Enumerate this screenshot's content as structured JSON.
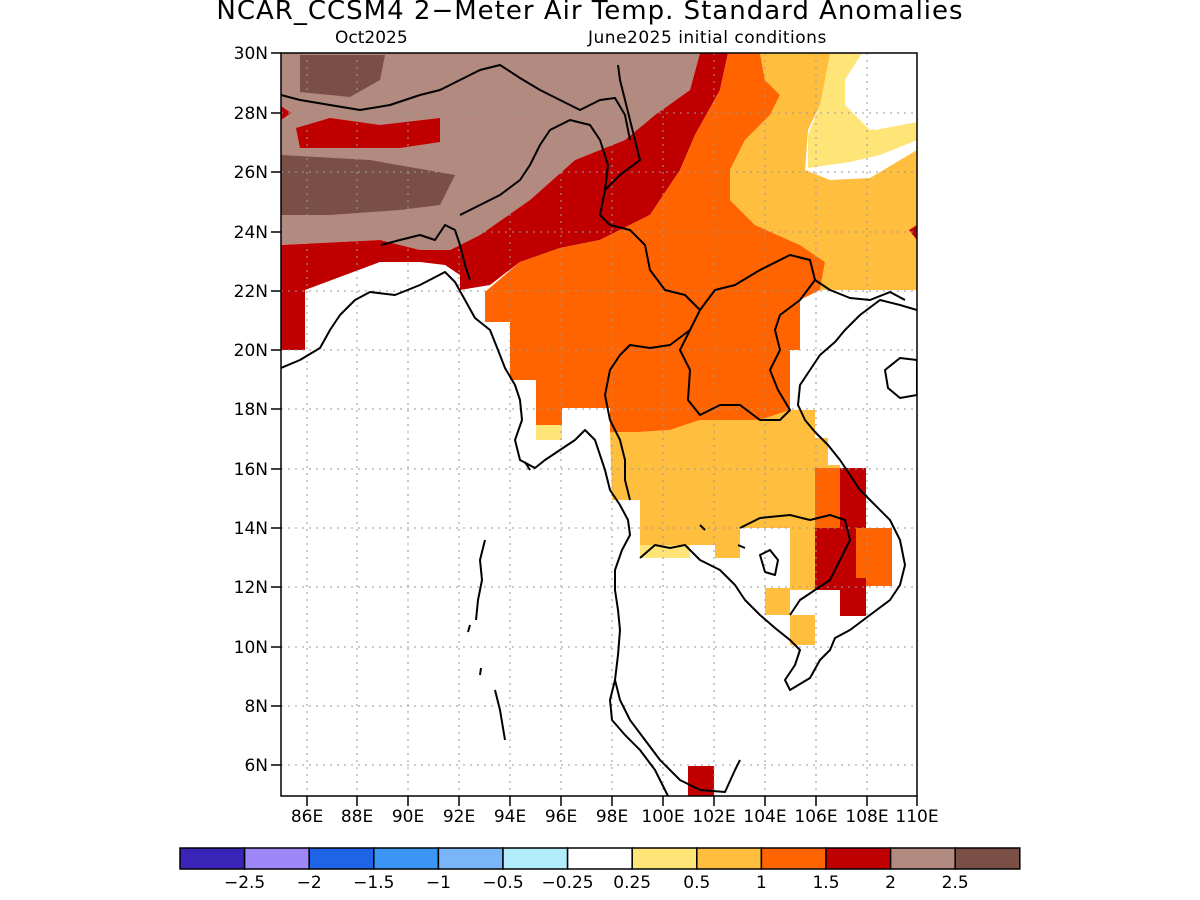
{
  "title": "NCAR_CCSM4 2−Meter Air Temp. Standard Anomalies",
  "subtitle_left": "Oct2025",
  "subtitle_right": "June2025 initial conditions",
  "lat_labels": [
    "30N",
    "28N",
    "26N",
    "24N",
    "22N",
    "20N",
    "18N",
    "16N",
    "14N",
    "12N",
    "10N",
    "8N",
    "6N"
  ],
  "lon_labels": [
    "86E",
    "88E",
    "90E",
    "92E",
    "94E",
    "96E",
    "98E",
    "100E",
    "102E",
    "104E",
    "106E",
    "108E",
    "110E"
  ],
  "colorbar": {
    "colors": [
      "#3a24b8",
      "#9e88f8",
      "#1f63e6",
      "#3b95f5",
      "#79b5f8",
      "#b2ecfb",
      "#ffffff",
      "#ffe478",
      "#ffbe3d",
      "#ff6400",
      "#c00000",
      "#b38a80",
      "#7a5046"
    ],
    "labels": [
      "−2.5",
      "−2",
      "−1.5",
      "−1",
      "−0.5",
      "−0.25",
      "0.25",
      "0.5",
      "1",
      "1.5",
      "2",
      "2.5"
    ]
  },
  "anomaly_colors": {
    "very_warm": "#7a5046",
    "warm_2_2_5": "#b38a80",
    "warm_1_5_2": "#c00000",
    "warm_1_1_5": "#ff6400",
    "warm_0_5_1": "#ffbe3d",
    "warm_0_25_0_5": "#ffe478"
  }
}
